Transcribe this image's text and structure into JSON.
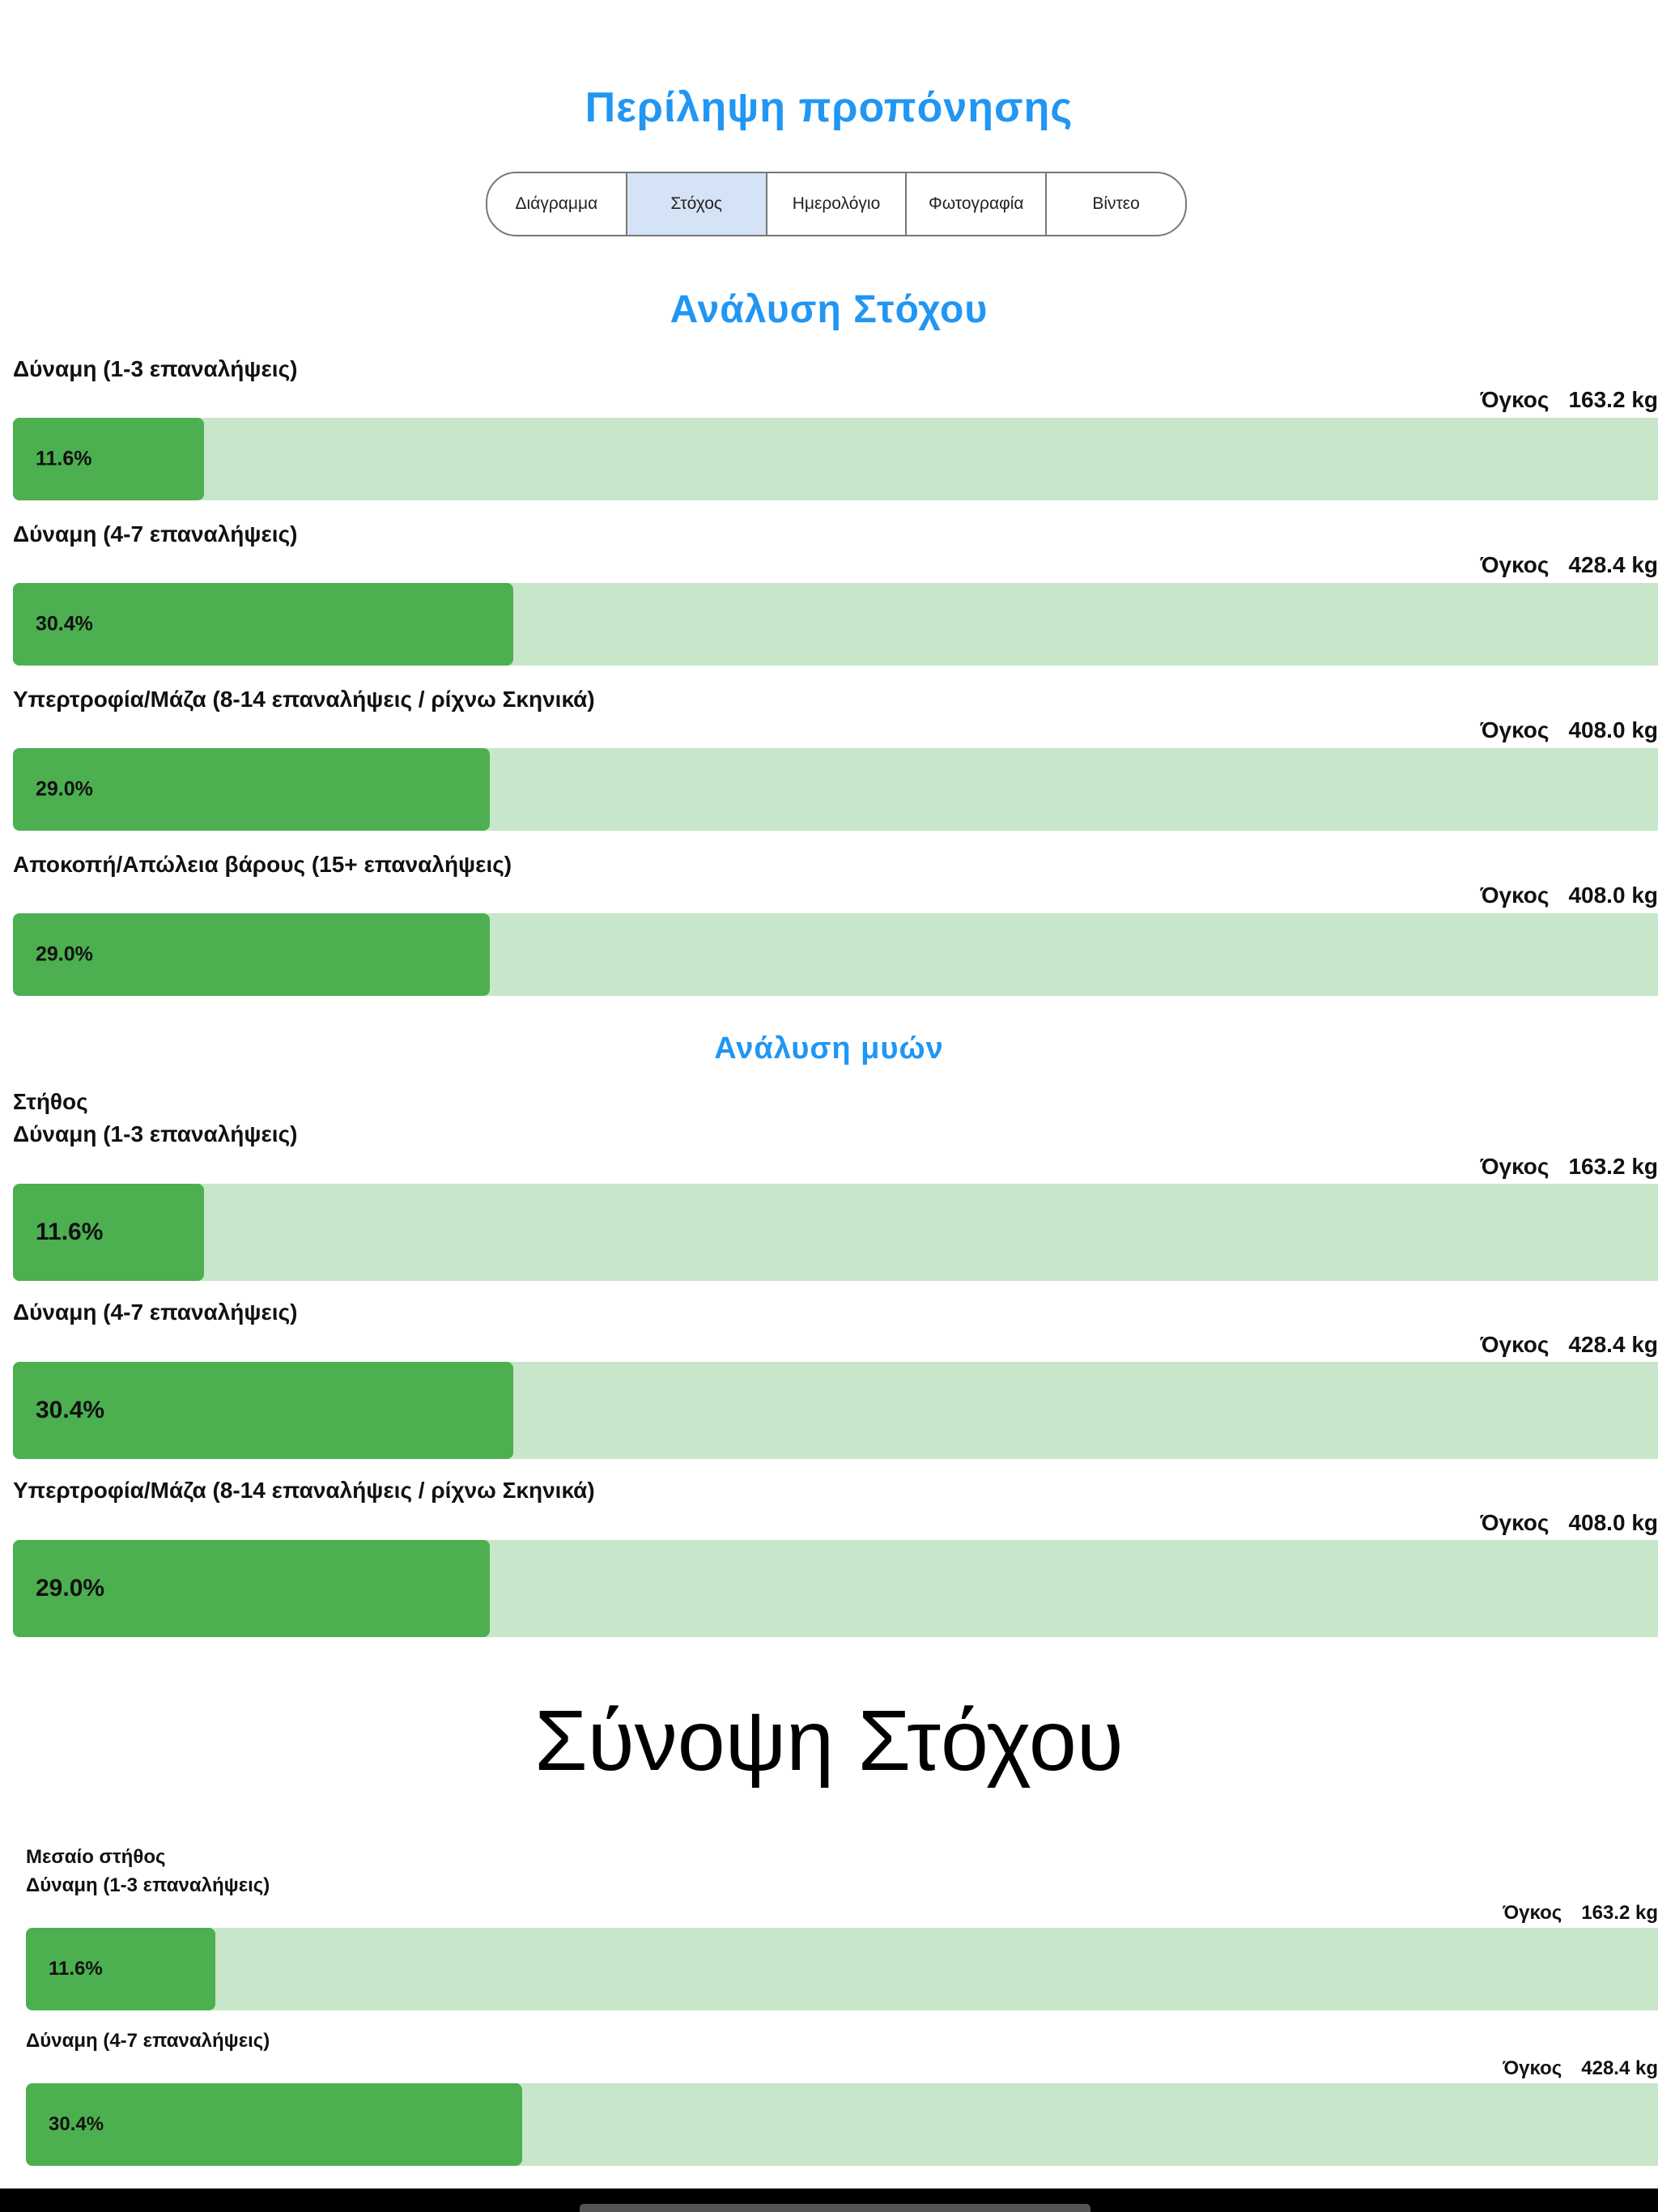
{
  "header": {
    "title": "Περίληψη προπόνησης"
  },
  "tabs": [
    {
      "label": "Διάγραμμα",
      "active": false
    },
    {
      "label": "Στόχος",
      "active": true
    },
    {
      "label": "Ημερολόγιο",
      "active": false
    },
    {
      "label": "Φωτογραφία",
      "active": false
    },
    {
      "label": "Βίντεο",
      "active": false
    }
  ],
  "goal_analysis": {
    "title": "Ανάλυση Στόχου",
    "rows": [
      {
        "label": "Δύναμη (1-3 επαναλήψεις)",
        "volume_label": "Όγκος",
        "volume": "163.2 kg",
        "percent_label": "11.6%",
        "percent": 11.6
      },
      {
        "label": "Δύναμη (4-7 επαναλήψεις)",
        "volume_label": "Όγκος",
        "volume": "428.4 kg",
        "percent_label": "30.4%",
        "percent": 30.4
      },
      {
        "label": "Υπερτροφία/Μάζα (8-14 επαναλήψεις / ρίχνω Σκηνικά)",
        "volume_label": "Όγκος",
        "volume": "408.0 kg",
        "percent_label": "29.0%",
        "percent": 29.0
      },
      {
        "label": "Αποκοπή/Απώλεια βάρους (15+ επαναλήψεις)",
        "volume_label": "Όγκος",
        "volume": "408.0 kg",
        "percent_label": "29.0%",
        "percent": 29.0
      }
    ]
  },
  "muscle_analysis": {
    "title": "Ανάλυση μυών",
    "muscle": "Στήθος",
    "rows": [
      {
        "label": "Δύναμη (1-3 επαναλήψεις)",
        "volume_label": "Όγκος",
        "volume": "163.2 kg",
        "percent_label": "11.6%",
        "percent": 11.6
      },
      {
        "label": "Δύναμη (4-7 επαναλήψεις)",
        "volume_label": "Όγκος",
        "volume": "428.4 kg",
        "percent_label": "30.4%",
        "percent": 30.4
      },
      {
        "label": "Υπερτροφία/Μάζα (8-14 επαναλήψεις / ρίχνω Σκηνικά)",
        "volume_label": "Όγκος",
        "volume": "408.0 kg",
        "percent_label": "29.0%",
        "percent": 29.0
      }
    ]
  },
  "goal_summary": {
    "title": "Σύνοψη Στόχου",
    "muscle": "Μεσαίο στήθος",
    "rows": [
      {
        "label": "Δύναμη (1-3 επαναλήψεις)",
        "volume_label": "Όγκος",
        "volume": "163.2 kg",
        "percent_label": "11.6%",
        "percent": 11.6
      },
      {
        "label": "Δύναμη (4-7 επαναλήψεις)",
        "volume_label": "Όγκος",
        "volume": "428.4 kg",
        "percent_label": "30.4%",
        "percent": 30.4
      }
    ]
  },
  "colors": {
    "accent": "#2196f3",
    "bar_fill": "#4caf50",
    "bar_track": "#c8e6c9",
    "active_tab": "#d4e3f5"
  }
}
